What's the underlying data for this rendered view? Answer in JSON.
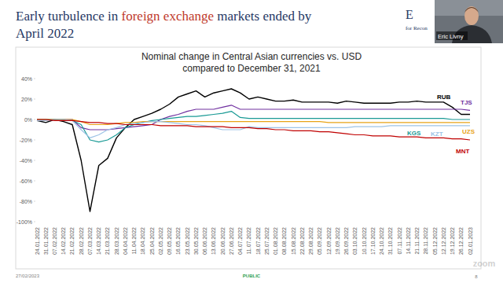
{
  "slide": {
    "title_lines": [
      [
        {
          "text": "Early turbulence in ",
          "color": "#1f3864"
        },
        {
          "text": "foreign exchange",
          "color": "#c0392b"
        },
        {
          "text": " markets ended by",
          "color": "#1f3864"
        }
      ],
      [
        {
          "text": "April 2022",
          "color": "#1f3864"
        }
      ]
    ],
    "logo": "E",
    "logo_subtitle": "for Recon",
    "presenter": "Eric Livny",
    "date": "27/02/2023",
    "classification": "PUBLIC",
    "page": "8",
    "watermark": "zoom"
  },
  "chart_data": {
    "type": "line",
    "title": "Nominal change in Central Asian currencies vs. USD",
    "subtitle": "compared to December 31, 2021",
    "categories": [
      "24.01.2022",
      "31.01.2022",
      "07.02.2022",
      "14.02.2022",
      "21.02.2022",
      "28.02.2022",
      "07.03.2022",
      "14.03.2022",
      "21.03.2022",
      "28.03.2022",
      "04.04.2022",
      "11.04.2022",
      "18.04.2022",
      "25.04.2022",
      "02.05.2022",
      "09.05.2022",
      "16.05.2022",
      "23.05.2022",
      "30.05.2022",
      "06.06.2022",
      "13.06.2022",
      "20.06.2022",
      "27.06.2022",
      "04.07.2022",
      "11.07.2022",
      "18.07.2022",
      "25.07.2022",
      "01.08.2022",
      "08.08.2022",
      "15.08.2022",
      "22.08.2022",
      "29.08.2022",
      "05.09.2022",
      "12.09.2022",
      "19.09.2022",
      "26.09.2022",
      "03.10.2022",
      "10.10.2022",
      "17.10.2022",
      "24.10.2022",
      "31.10.2022",
      "07.11.2022",
      "14.11.2022",
      "21.11.2022",
      "28.11.2022",
      "05.12.2022",
      "12.12.2022",
      "19.12.2022",
      "26.12.2022",
      "02.01.2023"
    ],
    "series": [
      {
        "name": "RUB",
        "color": "#000000",
        "values": [
          -1,
          -3,
          0,
          -2,
          -5,
          -40,
          -90,
          -45,
          -38,
          -18,
          -8,
          0,
          3,
          6,
          10,
          15,
          22,
          25,
          28,
          22,
          26,
          28,
          30,
          26,
          20,
          22,
          20,
          18,
          18,
          19,
          17,
          17,
          17,
          17,
          16,
          18,
          17,
          16,
          16,
          16,
          16,
          17,
          17,
          18,
          17,
          17,
          17,
          12,
          5,
          5
        ]
      },
      {
        "name": "TJS",
        "color": "#7030a0",
        "values": [
          0,
          0,
          0,
          0,
          0,
          -8,
          -10,
          -10,
          -10,
          -9,
          -8,
          -7,
          -6,
          -5,
          0,
          3,
          5,
          8,
          10,
          10,
          10,
          12,
          14,
          10,
          10,
          10,
          10,
          10,
          10,
          10,
          10,
          10,
          10,
          10,
          10,
          10,
          10,
          10,
          10,
          10,
          10,
          10,
          10,
          10,
          10,
          10,
          10,
          10,
          10,
          9
        ]
      },
      {
        "name": "KGS",
        "color": "#1a9a95",
        "values": [
          0,
          0,
          0,
          0,
          -1,
          -5,
          -20,
          -22,
          -20,
          -15,
          -8,
          -5,
          -3,
          -1,
          0,
          1,
          2,
          3,
          3,
          4,
          5,
          6,
          8,
          2,
          1,
          1,
          1,
          1,
          1,
          1,
          1,
          1,
          1,
          1,
          1,
          1,
          1,
          1,
          1,
          1,
          1,
          1,
          1,
          1,
          1,
          1,
          1,
          0,
          0,
          0
        ]
      },
      {
        "name": "UZS",
        "color": "#e8a317",
        "values": [
          0,
          0,
          0,
          0,
          0,
          -2,
          -5,
          -5,
          -5,
          -4,
          -3,
          -3,
          -2,
          -2,
          -2,
          -2,
          -2,
          -2,
          -2,
          -2,
          -2,
          -2,
          -2,
          -2,
          -2,
          -2,
          -2,
          -2,
          -2,
          -2,
          -2,
          -2,
          -2,
          -3,
          -3,
          -3,
          -3,
          -3,
          -3,
          -3,
          -3,
          -3,
          -3,
          -3,
          -3,
          -3,
          -3,
          -3,
          -3,
          -3
        ]
      },
      {
        "name": "KZT",
        "color": "#9dc3e6",
        "values": [
          -1,
          -1,
          0,
          0,
          -1,
          -10,
          -18,
          -15,
          -10,
          -8,
          -5,
          -4,
          -3,
          -2,
          -2,
          -3,
          -4,
          -5,
          -5,
          -6,
          -8,
          -10,
          -10,
          -10,
          -7,
          -8,
          -8,
          -8,
          -8,
          -8,
          -8,
          -8,
          -8,
          -8,
          -8,
          -8,
          -7,
          -7,
          -7,
          -7,
          -6,
          -6,
          -6,
          -6,
          -6,
          -6,
          -6,
          -6,
          -6,
          -6
        ]
      },
      {
        "name": "MNT",
        "color": "#c00000",
        "values": [
          0,
          0,
          -1,
          -1,
          -1,
          -2,
          -3,
          -3,
          -4,
          -4,
          -5,
          -5,
          -5,
          -5,
          -6,
          -6,
          -6,
          -6,
          -7,
          -7,
          -7,
          -7,
          -8,
          -8,
          -8,
          -9,
          -9,
          -10,
          -10,
          -11,
          -11,
          -11,
          -12,
          -12,
          -13,
          -14,
          -15,
          -15,
          -16,
          -16,
          -16,
          -17,
          -17,
          -17,
          -18,
          -18,
          -18,
          -19,
          -19,
          -20
        ]
      }
    ],
    "ylim": [
      -100,
      40
    ],
    "yticks": [
      {
        "value": -100,
        "label": "-100%"
      },
      {
        "value": -80,
        "label": "-80%"
      },
      {
        "value": -60,
        "label": "-60%"
      },
      {
        "value": -40,
        "label": "-40%"
      },
      {
        "value": -20,
        "label": "-20%"
      },
      {
        "value": 0,
        "label": "0%"
      },
      {
        "value": 20,
        "label": "20%"
      },
      {
        "value": 40,
        "label": "40%"
      }
    ],
    "grid": false
  }
}
